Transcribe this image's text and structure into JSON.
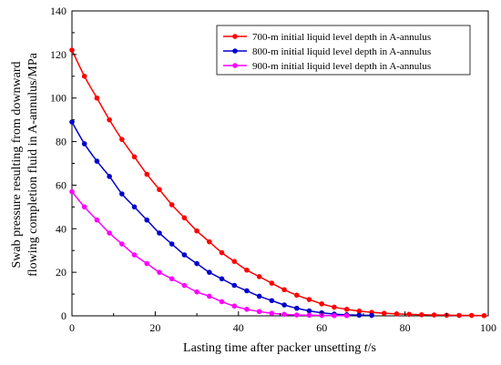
{
  "chart_data": {
    "type": "line",
    "title": "",
    "xlabel_prefix": "Lasting time after packer unsetting ",
    "xlabel_var": "t",
    "xlabel_suffix": "/s",
    "ylabel_line1": "Swab pressure resulting from downward",
    "ylabel_line2": "flowing completion fluid in A-annulus/MPa",
    "xlim": [
      0,
      100
    ],
    "ylim": [
      0,
      140
    ],
    "xticks": [
      0,
      20,
      40,
      60,
      80,
      100
    ],
    "yticks": [
      0,
      20,
      40,
      60,
      80,
      100,
      120,
      140
    ],
    "grid": false,
    "legend_position": "top-right",
    "series": [
      {
        "name": "700-m initial liquid level depth in A-annulus",
        "color": "#ff0000",
        "x": [
          0,
          3,
          6,
          9,
          12,
          15,
          18,
          21,
          24,
          27,
          30,
          33,
          36,
          39,
          42,
          45,
          48,
          51,
          54,
          57,
          60,
          63,
          66,
          69,
          72,
          75,
          78,
          81,
          84,
          87,
          90,
          93,
          96,
          99
        ],
        "y": [
          122,
          110,
          100,
          90,
          81,
          73,
          65,
          58,
          51,
          45,
          39,
          34,
          29,
          25,
          21,
          18,
          15,
          12,
          9.5,
          7.5,
          5.5,
          4,
          3,
          2.2,
          1.6,
          1.2,
          0.9,
          0.7,
          0.5,
          0.4,
          0.3,
          0.2,
          0.2,
          0.1
        ]
      },
      {
        "name": "800-m initial liquid level depth in A-annulus",
        "color": "#0000cc",
        "x": [
          0,
          3,
          6,
          9,
          12,
          15,
          18,
          21,
          24,
          27,
          30,
          33,
          36,
          39,
          42,
          45,
          48,
          51,
          54,
          57,
          60,
          63,
          66,
          69,
          72
        ],
        "y": [
          89,
          79,
          71,
          64,
          56,
          50,
          44,
          38,
          33,
          28,
          24,
          20,
          17,
          14,
          11.5,
          9,
          7,
          5,
          3.5,
          2.3,
          1.4,
          0.8,
          0.5,
          0.3,
          0.2
        ]
      },
      {
        "name": "900-m initial liquid level depth in A-annulus",
        "color": "#ff00ff",
        "x": [
          0,
          3,
          6,
          9,
          12,
          15,
          18,
          21,
          24,
          27,
          30,
          33,
          36,
          39,
          42,
          45,
          48,
          51,
          54,
          57,
          60,
          63,
          66
        ],
        "y": [
          57,
          50,
          44,
          38,
          33,
          28,
          24,
          20,
          17,
          14,
          11,
          9,
          6.5,
          4.5,
          3,
          2,
          1.2,
          0.7,
          0.4,
          0.3,
          0.2,
          0.1,
          0.1
        ]
      }
    ]
  }
}
